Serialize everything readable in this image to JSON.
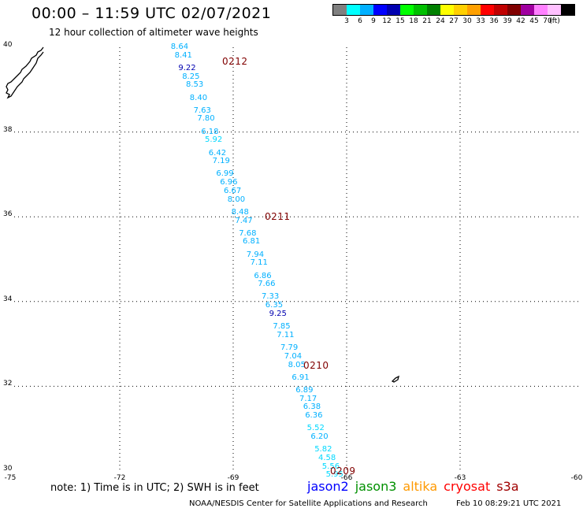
{
  "header": {
    "title": "00:00 – 11:59 UTC 02/07/2021",
    "subtitle": "12 hour collection of altimeter wave heights"
  },
  "legend": {
    "colors": [
      "#808080",
      "#00ffff",
      "#00b0ff",
      "#0000ff",
      "#0000b0",
      "#00ff00",
      "#00c000",
      "#008000",
      "#ffff00",
      "#ffd000",
      "#ffa000",
      "#ff0000",
      "#c00000",
      "#800000",
      "#a000a0",
      "#ff80ff",
      "#ffc0ff",
      "#000000"
    ],
    "tick_labels": [
      "3",
      "6",
      "9",
      "12",
      "15",
      "18",
      "21",
      "24",
      "27",
      "30",
      "33",
      "36",
      "39",
      "42",
      "45",
      "70"
    ],
    "unit": "(ft)"
  },
  "axes": {
    "lat_labels": [
      "40",
      "38",
      "36",
      "34",
      "32",
      "30"
    ],
    "lon_labels": [
      "-75",
      "-72",
      "-69",
      "-66",
      "-63",
      "-60"
    ]
  },
  "pass_labels": [
    {
      "text": "0212",
      "lat": 39.8
    },
    {
      "text": "0211",
      "lat": 36.2
    },
    {
      "text": "0210",
      "lat": 32.6
    },
    {
      "text": "0209",
      "lat": 30.0
    }
  ],
  "track": [
    {
      "text": "8.64",
      "lat": 40.0,
      "lon": -70.4,
      "color": "#00b0ff"
    },
    {
      "text": "8.41",
      "lat": 39.8,
      "lon": -70.3,
      "color": "#00b0ff"
    },
    {
      "text": "9.22",
      "lat": 39.5,
      "lon": -70.2,
      "color": "#0000b0"
    },
    {
      "text": "8.25",
      "lat": 39.3,
      "lon": -70.1,
      "color": "#00b0ff"
    },
    {
      "text": "8.53",
      "lat": 39.1,
      "lon": -70.0,
      "color": "#00b0ff"
    },
    {
      "text": "8.40",
      "lat": 38.8,
      "lon": -69.9,
      "color": "#00b0ff"
    },
    {
      "text": "7.63",
      "lat": 38.5,
      "lon": -69.8,
      "color": "#00b0ff"
    },
    {
      "text": "7.80",
      "lat": 38.3,
      "lon": -69.7,
      "color": "#00b0ff"
    },
    {
      "text": "6.18",
      "lat": 38.0,
      "lon": -69.6,
      "color": "#00b0ff"
    },
    {
      "text": "5.92",
      "lat": 37.8,
      "lon": -69.5,
      "color": "#00d8ff"
    },
    {
      "text": "6.42",
      "lat": 37.5,
      "lon": -69.4,
      "color": "#00b0ff"
    },
    {
      "text": "7.19",
      "lat": 37.3,
      "lon": -69.3,
      "color": "#00b0ff"
    },
    {
      "text": "6.99",
      "lat": 37.0,
      "lon": -69.2,
      "color": "#00b0ff"
    },
    {
      "text": "6.96",
      "lat": 36.8,
      "lon": -69.1,
      "color": "#00b0ff"
    },
    {
      "text": "6.67",
      "lat": 36.6,
      "lon": -69.0,
      "color": "#00b0ff"
    },
    {
      "text": "8.00",
      "lat": 36.4,
      "lon": -68.9,
      "color": "#00b0ff"
    },
    {
      "text": "8.48",
      "lat": 36.1,
      "lon": -68.8,
      "color": "#00b0ff"
    },
    {
      "text": "7.47",
      "lat": 35.9,
      "lon": -68.7,
      "color": "#00b0ff"
    },
    {
      "text": "7.68",
      "lat": 35.6,
      "lon": -68.6,
      "color": "#00b0ff"
    },
    {
      "text": "6.81",
      "lat": 35.4,
      "lon": -68.5,
      "color": "#00b0ff"
    },
    {
      "text": "7.94",
      "lat": 35.1,
      "lon": -68.4,
      "color": "#00b0ff"
    },
    {
      "text": "7.11",
      "lat": 34.9,
      "lon": -68.3,
      "color": "#00b0ff"
    },
    {
      "text": "6.86",
      "lat": 34.6,
      "lon": -68.2,
      "color": "#00b0ff"
    },
    {
      "text": "7.66",
      "lat": 34.4,
      "lon": -68.1,
      "color": "#00b0ff"
    },
    {
      "text": "7.33",
      "lat": 34.1,
      "lon": -68.0,
      "color": "#00b0ff"
    },
    {
      "text": "6.35",
      "lat": 33.9,
      "lon": -67.9,
      "color": "#00b0ff"
    },
    {
      "text": "9.25",
      "lat": 33.7,
      "lon": -67.8,
      "color": "#0000b0"
    },
    {
      "text": "7.85",
      "lat": 33.4,
      "lon": -67.7,
      "color": "#00b0ff"
    },
    {
      "text": "7.11",
      "lat": 33.2,
      "lon": -67.6,
      "color": "#00b0ff"
    },
    {
      "text": "7.79",
      "lat": 32.9,
      "lon": -67.5,
      "color": "#00b0ff"
    },
    {
      "text": "7.04",
      "lat": 32.7,
      "lon": -67.4,
      "color": "#00b0ff"
    },
    {
      "text": "8.05",
      "lat": 32.5,
      "lon": -67.3,
      "color": "#00b0ff"
    },
    {
      "text": "6.91",
      "lat": 32.2,
      "lon": -67.2,
      "color": "#00b0ff"
    },
    {
      "text": "6.89",
      "lat": 31.9,
      "lon": -67.1,
      "color": "#00b0ff"
    },
    {
      "text": "7.17",
      "lat": 31.7,
      "lon": -67.0,
      "color": "#00b0ff"
    },
    {
      "text": "6.38",
      "lat": 31.5,
      "lon": -66.9,
      "color": "#00b0ff"
    },
    {
      "text": "6.36",
      "lat": 31.3,
      "lon": -66.85,
      "color": "#00b0ff"
    },
    {
      "text": "5.52",
      "lat": 31.0,
      "lon": -66.8,
      "color": "#00d8ff"
    },
    {
      "text": "6.20",
      "lat": 30.8,
      "lon": -66.7,
      "color": "#00b0ff"
    },
    {
      "text": "5.82",
      "lat": 30.5,
      "lon": -66.6,
      "color": "#00d8ff"
    },
    {
      "text": "4.58",
      "lat": 30.3,
      "lon": -66.5,
      "color": "#00d8ff"
    },
    {
      "text": "5.56",
      "lat": 30.1,
      "lon": -66.4,
      "color": "#00d8ff"
    },
    {
      "text": "5.95",
      "lat": 29.9,
      "lon": -66.3,
      "color": "#00d8ff"
    }
  ],
  "footer": {
    "note": "note: 1) Time is in UTC; 2) SWH is in feet",
    "satellites": [
      {
        "name": "jason2",
        "color": "#0000ff"
      },
      {
        "name": "jason3",
        "color": "#009000"
      },
      {
        "name": "altika",
        "color": "#ff9900"
      },
      {
        "name": "cryosat",
        "color": "#ff0000"
      },
      {
        "name": "s3a",
        "color": "#a00000"
      }
    ],
    "credit": "NOAA/NESDIS Center for Satellite Applications and Research",
    "timestamp": "Feb 10 08:29:21 UTC 2021"
  }
}
